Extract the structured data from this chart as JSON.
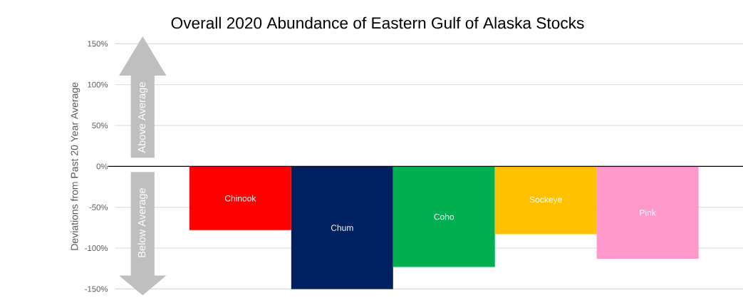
{
  "chart_data": {
    "type": "bar",
    "title": "Overall 2020 Abundance of Eastern Gulf of Alaska Stocks",
    "ylabel": "Deviations from Past 20 Year Average",
    "categories": [
      "Chinook",
      "Chum",
      "Coho",
      "Sockeye",
      "Pink"
    ],
    "values": [
      -78,
      -150,
      -123,
      -83,
      -113
    ],
    "colors": [
      "#ff0000",
      "#002060",
      "#00b050",
      "#ffc000",
      "#ff99cc"
    ],
    "ylim": [
      -150,
      150
    ],
    "yticks": [
      {
        "value": -150,
        "label": "-150%"
      },
      {
        "value": -100,
        "label": "-100%"
      },
      {
        "value": -50,
        "label": "-50%"
      },
      {
        "value": 0,
        "label": "0%"
      },
      {
        "value": 50,
        "label": "50%"
      },
      {
        "value": 100,
        "label": "100%"
      },
      {
        "value": 150,
        "label": "150%"
      }
    ],
    "grid": "y",
    "tick_labels": "y",
    "annotations": [
      "Above Average",
      "Below Average"
    ]
  }
}
